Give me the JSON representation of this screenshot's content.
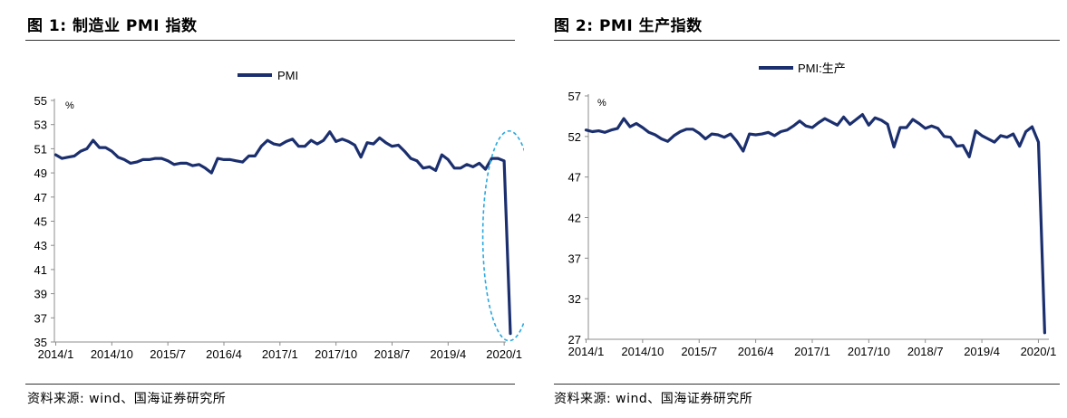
{
  "figures": [
    {
      "title": "图 1:  制造业 PMI 指数",
      "source": "资料来源:  wind、国海证券研究所"
    },
    {
      "title": "图 2:  PMI 生产指数",
      "source": "资料来源:  wind、国海证券研究所"
    }
  ],
  "chart_data": [
    {
      "type": "line",
      "title": "",
      "xlabel": "",
      "ylabel": "%",
      "ylim": [
        35,
        55
      ],
      "yticks": [
        35,
        37,
        39,
        41,
        43,
        45,
        47,
        49,
        51,
        53,
        55
      ],
      "xtick_labels": [
        "2014/1",
        "2014/10",
        "2015/7",
        "2016/4",
        "2017/1",
        "2017/10",
        "2018/7",
        "2019/4",
        "2020/1"
      ],
      "legend_position": "top-center",
      "grid": false,
      "highlight": "dashed ellipse around 2020/1–2020/2 drop",
      "highlight_color": "#29a8e0",
      "series": [
        {
          "name": "PMI",
          "color": "#1b2f6e",
          "x": [
            "2014/1",
            "2014/2",
            "2014/3",
            "2014/4",
            "2014/5",
            "2014/6",
            "2014/7",
            "2014/8",
            "2014/9",
            "2014/10",
            "2014/11",
            "2014/12",
            "2015/1",
            "2015/2",
            "2015/3",
            "2015/4",
            "2015/5",
            "2015/6",
            "2015/7",
            "2015/8",
            "2015/9",
            "2015/10",
            "2015/11",
            "2015/12",
            "2016/1",
            "2016/2",
            "2016/3",
            "2016/4",
            "2016/5",
            "2016/6",
            "2016/7",
            "2016/8",
            "2016/9",
            "2016/10",
            "2016/11",
            "2016/12",
            "2017/1",
            "2017/2",
            "2017/3",
            "2017/4",
            "2017/5",
            "2017/6",
            "2017/7",
            "2017/8",
            "2017/9",
            "2017/10",
            "2017/11",
            "2017/12",
            "2018/1",
            "2018/2",
            "2018/3",
            "2018/4",
            "2018/5",
            "2018/6",
            "2018/7",
            "2018/8",
            "2018/9",
            "2018/10",
            "2018/11",
            "2018/12",
            "2019/1",
            "2019/2",
            "2019/3",
            "2019/4",
            "2019/5",
            "2019/6",
            "2019/7",
            "2019/8",
            "2019/9",
            "2019/10",
            "2019/11",
            "2019/12",
            "2020/1",
            "2020/2"
          ],
          "values": [
            50.5,
            50.2,
            50.3,
            50.4,
            50.8,
            51.0,
            51.7,
            51.1,
            51.1,
            50.8,
            50.3,
            50.1,
            49.8,
            49.9,
            50.1,
            50.1,
            50.2,
            50.2,
            50.0,
            49.7,
            49.8,
            49.8,
            49.6,
            49.7,
            49.4,
            49.0,
            50.2,
            50.1,
            50.1,
            50.0,
            49.9,
            50.4,
            50.4,
            51.2,
            51.7,
            51.4,
            51.3,
            51.6,
            51.8,
            51.2,
            51.2,
            51.7,
            51.4,
            51.7,
            52.4,
            51.6,
            51.8,
            51.6,
            51.3,
            50.3,
            51.5,
            51.4,
            51.9,
            51.5,
            51.2,
            51.3,
            50.8,
            50.2,
            50.0,
            49.4,
            49.5,
            49.2,
            50.5,
            50.1,
            49.4,
            49.4,
            49.7,
            49.5,
            49.8,
            49.3,
            50.2,
            50.2,
            50.0,
            35.7
          ]
        }
      ]
    },
    {
      "type": "line",
      "title": "",
      "xlabel": "",
      "ylabel": "%",
      "ylim": [
        27,
        57
      ],
      "yticks": [
        27,
        32,
        37,
        42,
        47,
        52,
        57
      ],
      "xtick_labels": [
        "2014/1",
        "2014/10",
        "2015/7",
        "2016/4",
        "2017/1",
        "2017/10",
        "2018/7",
        "2019/4",
        "2020/1"
      ],
      "legend_position": "top-center",
      "grid": false,
      "series": [
        {
          "name": "PMI:生产",
          "color": "#1b2f6e",
          "x": [
            "2014/1",
            "2014/2",
            "2014/3",
            "2014/4",
            "2014/5",
            "2014/6",
            "2014/7",
            "2014/8",
            "2014/9",
            "2014/10",
            "2014/11",
            "2014/12",
            "2015/1",
            "2015/2",
            "2015/3",
            "2015/4",
            "2015/5",
            "2015/6",
            "2015/7",
            "2015/8",
            "2015/9",
            "2015/10",
            "2015/11",
            "2015/12",
            "2016/1",
            "2016/2",
            "2016/3",
            "2016/4",
            "2016/5",
            "2016/6",
            "2016/7",
            "2016/8",
            "2016/9",
            "2016/10",
            "2016/11",
            "2016/12",
            "2017/1",
            "2017/2",
            "2017/3",
            "2017/4",
            "2017/5",
            "2017/6",
            "2017/7",
            "2017/8",
            "2017/9",
            "2017/10",
            "2017/11",
            "2017/12",
            "2018/1",
            "2018/2",
            "2018/3",
            "2018/4",
            "2018/5",
            "2018/6",
            "2018/7",
            "2018/8",
            "2018/9",
            "2018/10",
            "2018/11",
            "2018/12",
            "2019/1",
            "2019/2",
            "2019/3",
            "2019/4",
            "2019/5",
            "2019/6",
            "2019/7",
            "2019/8",
            "2019/9",
            "2019/10",
            "2019/11",
            "2019/12",
            "2020/1",
            "2020/2"
          ],
          "values": [
            52.8,
            52.6,
            52.7,
            52.5,
            52.8,
            53.0,
            54.2,
            53.2,
            53.6,
            53.1,
            52.5,
            52.2,
            51.7,
            51.4,
            52.1,
            52.6,
            52.9,
            52.9,
            52.4,
            51.7,
            52.3,
            52.2,
            51.9,
            52.3,
            51.4,
            50.2,
            52.3,
            52.2,
            52.3,
            52.5,
            52.1,
            52.6,
            52.8,
            53.3,
            53.9,
            53.3,
            53.1,
            53.7,
            54.2,
            53.8,
            53.4,
            54.4,
            53.5,
            54.1,
            54.7,
            53.4,
            54.3,
            54.0,
            53.5,
            50.7,
            53.1,
            53.1,
            54.1,
            53.6,
            53.0,
            53.3,
            53.0,
            52.0,
            51.9,
            50.8,
            50.9,
            49.5,
            52.7,
            52.1,
            51.7,
            51.3,
            52.1,
            51.9,
            52.3,
            50.8,
            52.6,
            53.2,
            51.3,
            27.8
          ]
        }
      ]
    }
  ]
}
